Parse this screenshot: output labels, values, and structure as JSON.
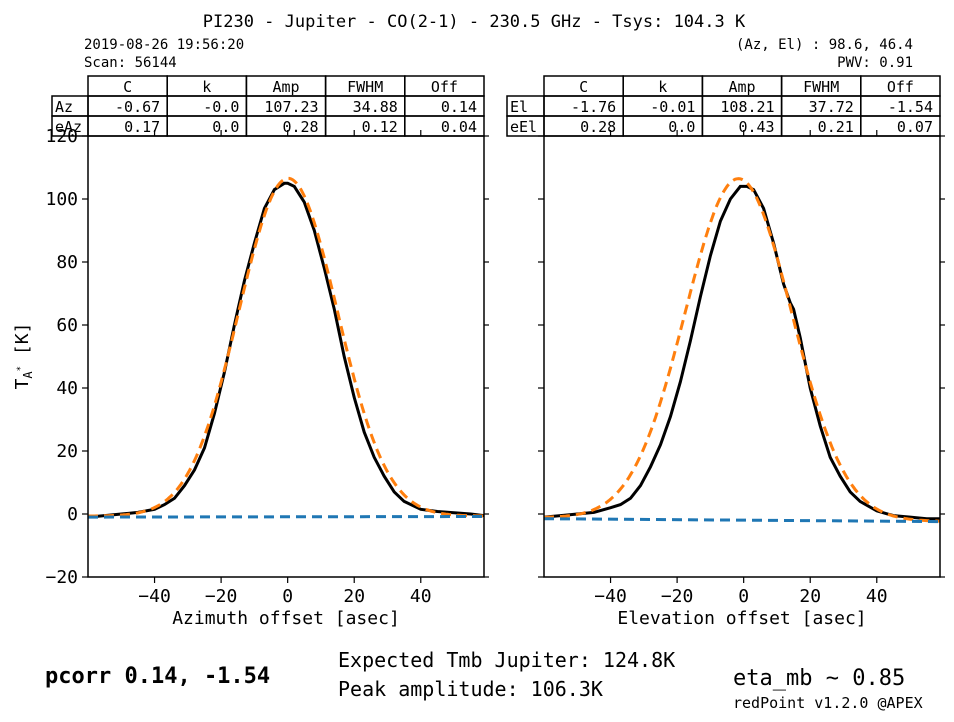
{
  "header": {
    "title": "PI230 - Jupiter - CO(2-1) - 230.5 GHz - Tsys: 104.3 K",
    "datetime": "2019-08-26 19:56:20",
    "scan": "Scan: 56144",
    "azel": "(Az, El) : 98.6, 46.4",
    "pwv": "PWV: 0.91"
  },
  "tables": [
    {
      "columns": [
        "C",
        "k",
        "Amp",
        "FWHM",
        "Off"
      ],
      "rows": [
        {
          "label": "Az",
          "values": [
            "-0.67",
            "-0.0",
            "107.23",
            "34.88",
            "0.14"
          ]
        },
        {
          "label": "eAz",
          "values": [
            "0.17",
            "0.0",
            "0.28",
            "0.12",
            "0.04"
          ]
        }
      ]
    },
    {
      "columns": [
        "C",
        "k",
        "Amp",
        "FWHM",
        "Off"
      ],
      "rows": [
        {
          "label": "El",
          "values": [
            "-1.76",
            "-0.01",
            "108.21",
            "37.72",
            "-1.54"
          ]
        },
        {
          "label": "eEl",
          "values": [
            "0.28",
            "0.0",
            "0.43",
            "0.21",
            "0.07"
          ]
        }
      ]
    }
  ],
  "footer": {
    "pcorr": "pcorr 0.14, -1.54",
    "expected": "Expected Tmb Jupiter: 124.8K",
    "peak": "Peak amplitude: 106.3K",
    "eta": "eta_mb ~ 0.85",
    "version": "redPoint v1.2.0 @APEX"
  },
  "colors": {
    "data": "#000000",
    "fit": "#ff7f0e",
    "baseline": "#1f77b4"
  },
  "chart_data": [
    {
      "type": "line",
      "xlabel": "Azimuth offset [asec]",
      "ylabel": "T_A* [K]",
      "xlim": [
        -60,
        59
      ],
      "ylim": [
        -20,
        120
      ],
      "xticks": [
        -40,
        -20,
        0,
        20,
        40
      ],
      "yticks": [
        -20,
        0,
        20,
        40,
        60,
        80,
        100,
        120
      ],
      "grid": false,
      "series": [
        {
          "style": "data",
          "x": [
            -60,
            -55,
            -50,
            -45,
            -40,
            -37,
            -34,
            -31,
            -28,
            -25,
            -22,
            -19,
            -16,
            -13,
            -10,
            -7,
            -4,
            -1,
            0,
            2,
            5,
            8,
            11,
            14,
            17,
            20,
            23,
            26,
            29,
            32,
            35,
            40,
            45,
            50,
            55,
            59
          ],
          "y": [
            -1,
            -0.5,
            0,
            0.5,
            1.5,
            3,
            5,
            9,
            14,
            21,
            32,
            45,
            60,
            74,
            86,
            97,
            103,
            105,
            105,
            104,
            99,
            90,
            78,
            65,
            50,
            37,
            26,
            18,
            12,
            7,
            4,
            1.5,
            0.8,
            0.4,
            0,
            -0.5
          ]
        },
        {
          "style": "fit",
          "gaussian": {
            "amp": 107.23,
            "center": 0.14,
            "fwhm": 34.88,
            "offset": -0.67,
            "slope": 0.0
          },
          "x_range": [
            -60,
            59
          ]
        },
        {
          "style": "baseline",
          "x": [
            -60,
            59
          ],
          "y": [
            -1.0,
            -0.8
          ]
        }
      ]
    },
    {
      "type": "line",
      "xlabel": "Elevation offset [asec]",
      "ylabel": "",
      "xlim": [
        -60,
        59
      ],
      "ylim": [
        -20,
        120
      ],
      "xticks": [
        -40,
        -20,
        0,
        20,
        40
      ],
      "yticks": [
        -20,
        0,
        20,
        40,
        60,
        80,
        100,
        120
      ],
      "grid": false,
      "series": [
        {
          "style": "data",
          "x": [
            -60,
            -55,
            -50,
            -45,
            -40,
            -37,
            -34,
            -31,
            -28,
            -25,
            -22,
            -19,
            -16,
            -13,
            -10,
            -7,
            -4,
            -1,
            1,
            3,
            6,
            9,
            12,
            14,
            15,
            17,
            20,
            23,
            26,
            29,
            32,
            35,
            40,
            45,
            50,
            55,
            59
          ],
          "y": [
            -1,
            -0.5,
            0,
            0.5,
            2,
            3,
            5,
            9,
            15,
            22,
            31,
            42,
            55,
            69,
            82,
            93,
            100,
            104,
            104,
            103,
            97,
            86,
            73,
            67,
            65,
            56,
            40,
            28,
            18,
            12,
            7,
            4,
            1,
            -0.5,
            -1,
            -1.5,
            -1.5
          ]
        },
        {
          "style": "fit",
          "gaussian": {
            "amp": 108.21,
            "center": -1.54,
            "fwhm": 37.72,
            "offset": -1.76,
            "slope": -0.01
          },
          "x_range": [
            -60,
            59
          ]
        },
        {
          "style": "baseline",
          "x": [
            -60,
            59
          ],
          "y": [
            -1.5,
            -2.4
          ]
        }
      ]
    }
  ]
}
